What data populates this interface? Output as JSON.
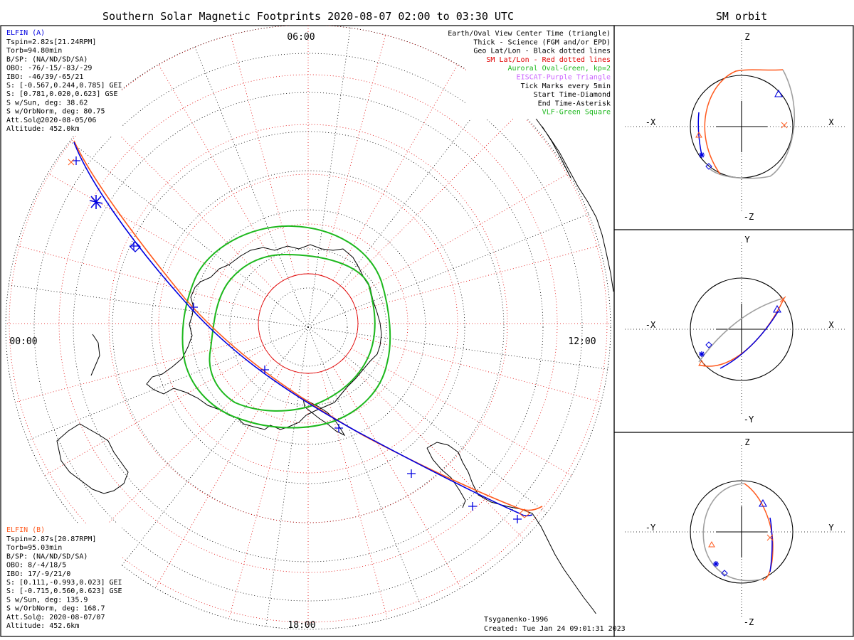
{
  "title": "Southern Solar Magnetic Footprints 2020-08-07 02:00 to 03:30 UTC",
  "orbit_title": "SM orbit",
  "local_times": {
    "top": "06:00",
    "left": "00:00",
    "right": "12:00",
    "bottom": "18:00"
  },
  "legend": [
    {
      "text": "Earth/Oval View Center Time (triangle)",
      "color": "#000000"
    },
    {
      "text": "Thick - Science (FGM and/or EPD)",
      "color": "#000000"
    },
    {
      "text": "Geo Lat/Lon - Black dotted lines",
      "color": "#000000"
    },
    {
      "text": "SM Lat/Lon - Red dotted lines",
      "color": "#e00000"
    },
    {
      "text": "Auroral Oval-Green, kp=2",
      "color": "#1db81d"
    },
    {
      "text": "EISCAT-Purple Triangle",
      "color": "#cc66ff"
    },
    {
      "text": "Tick Marks every 5min",
      "color": "#000000"
    },
    {
      "text": "Start Time-Diamond",
      "color": "#000000"
    },
    {
      "text": "End Time-Asterisk",
      "color": "#000000"
    },
    {
      "text": "VLF-Green Square",
      "color": "#1db81d"
    }
  ],
  "elfin_a": {
    "name": "ELFIN (A)",
    "color": "#0000e0",
    "lines": [
      "Tspin=2.82s[21.24RPM]",
      "Torb=94.80min",
      "B/SP: (NA/ND/SD/SA)",
      "OBO: -76/-15/-83/-29",
      "IBO: -46/39/-65/21",
      "S: [-0.567,0.244,0.785] GEI",
      "S: [0.781,0.020,0.623] GSE",
      "S w/Sun, deg: 38.62",
      "S w/OrbNorm, deg: 80.75",
      "Att.Sol@2020-08-05/06",
      "Altitude: 452.0km"
    ]
  },
  "elfin_b": {
    "name": "ELFIN (B)",
    "color": "#ff5a1e",
    "lines": [
      "Tspin=2.87s[20.87RPM]",
      "Torb=95.03min",
      "B/SP: (NA/ND/SD/SA)",
      "OBO: 8/-4/18/5",
      "IBO: 17/-9/21/0",
      "S: [0.111,-0.993,0.023] GEI",
      "S: [-0.715,0.560,0.623] GSE",
      "S w/Sun, deg: 135.9",
      "S w/OrbNorm, deg: 168.7",
      "Att.Sol@: 2020-08-07/07",
      "Altitude: 452.6km"
    ]
  },
  "credits": {
    "model": "Tsyganenko-1996",
    "created": "Created: Tue Jan 24 09:01:31 2023"
  },
  "orbit_panels": [
    {
      "id": "xz",
      "top": "Z",
      "bottom": "-Z",
      "left": "-X",
      "right": "X"
    },
    {
      "id": "xy",
      "top": "Y",
      "bottom": "-Y",
      "left": "-X",
      "right": "X"
    },
    {
      "id": "yz",
      "top": "Z",
      "bottom": "-Z",
      "left": "-Y",
      "right": "Y"
    }
  ],
  "colors": {
    "auroral_oval": "#1db81d",
    "sm_grid": "#e00000",
    "geo_grid": "#000000",
    "elfin_a": "#0000e0",
    "elfin_b": "#ff5a1e",
    "orbit_shadow": "#a0a0a0"
  }
}
